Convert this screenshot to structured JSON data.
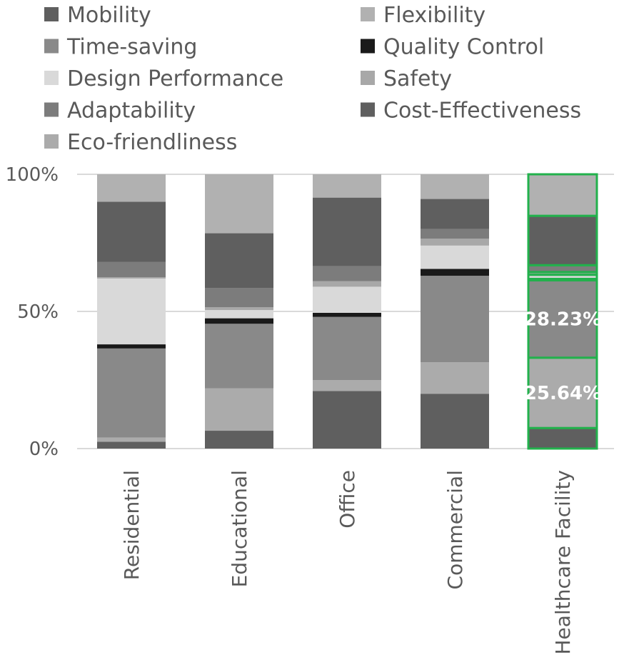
{
  "chart_data": {
    "type": "bar",
    "stacked": true,
    "percent_stacked": true,
    "orientation": "vertical",
    "categories": [
      "Residential",
      "Educational",
      "Office",
      "Commercial",
      "Healthcare Facility"
    ],
    "series": [
      {
        "name": "Cost-Effectiveness",
        "color": "#5f5f5f",
        "values": [
          2.5,
          6.5,
          21.0,
          20.0,
          7.5
        ]
      },
      {
        "name": "Eco-friendliness",
        "color": "#ababab",
        "values": [
          1.5,
          15.5,
          4.0,
          11.5,
          25.64
        ]
      },
      {
        "name": "Time-saving",
        "color": "#898989",
        "values": [
          32.5,
          23.5,
          23.0,
          31.5,
          28.23
        ]
      },
      {
        "name": "Quality Control",
        "color": "#1a1a1a",
        "values": [
          1.5,
          2.0,
          1.5,
          2.5,
          0.5
        ]
      },
      {
        "name": "Design Performance",
        "color": "#d9d9d9",
        "values": [
          24.0,
          3.0,
          9.5,
          8.5,
          1.5
        ]
      },
      {
        "name": "Safety",
        "color": "#a8a8a8",
        "values": [
          0.5,
          1.0,
          2.0,
          2.5,
          1.0
        ]
      },
      {
        "name": "Adaptability",
        "color": "#7c7c7c",
        "values": [
          5.5,
          7.0,
          5.5,
          3.5,
          2.5
        ]
      },
      {
        "name": "Mobility",
        "color": "#5f5f5f",
        "values": [
          22.0,
          20.0,
          25.0,
          11.0,
          18.0
        ]
      },
      {
        "name": "Flexibility",
        "color": "#b1b1b1",
        "values": [
          10.0,
          21.5,
          8.5,
          9.0,
          15.14
        ]
      }
    ],
    "legend_order": [
      "Mobility",
      "Flexibility",
      "Time-saving",
      "Quality Control",
      "Design Performance",
      "Safety",
      "Adaptability",
      "Cost-Effectiveness",
      "Eco-friendliness"
    ],
    "legend_position": "top",
    "y_ticks": [
      "0%",
      "50%",
      "100%"
    ],
    "ylim": [
      0,
      100
    ],
    "grid": true,
    "highlighted_category": "Healthcare Facility",
    "highlight_color": "#22b14c",
    "data_labels": [
      {
        "category": "Healthcare Facility",
        "series": "Time-saving",
        "text": "28.23%"
      },
      {
        "category": "Healthcare Facility",
        "series": "Eco-friendliness",
        "text": "25.64%"
      }
    ]
  }
}
